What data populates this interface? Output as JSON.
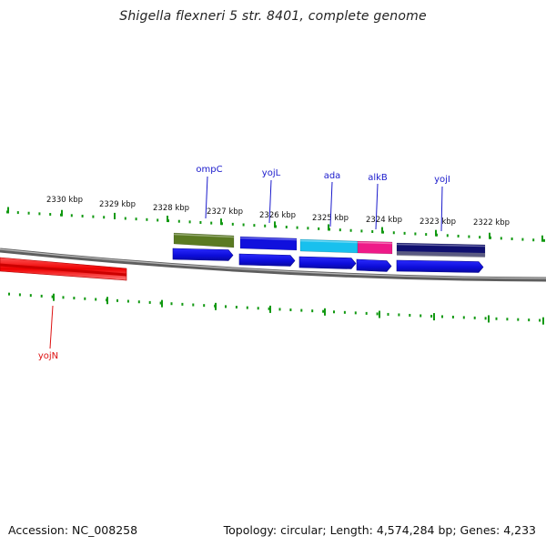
{
  "title": "Shigella flexneri 5 str. 8401, complete genome",
  "footer": {
    "accession": "Accession: NC_008258",
    "summary": "Topology: circular; Length: 4,574,284 bp; Genes: 4,233"
  },
  "scale_labels": [
    "2330 kbp",
    "2329 kbp",
    "2328 kbp",
    "2327 kbp",
    "2326 kbp",
    "2325 kbp",
    "2324 kbp",
    "2323 kbp",
    "2322 kbp"
  ],
  "genes": [
    {
      "name": "ompC",
      "strand": "upper",
      "color": "#5a7a22",
      "label_color": "#1a1acc"
    },
    {
      "name": "yojL",
      "strand": "upper",
      "color": "#1010dd",
      "label_color": "#1a1acc"
    },
    {
      "name": "ada",
      "strand": "upper",
      "color": "#18c0ee",
      "label_color": "#1a1acc"
    },
    {
      "name": "alkB",
      "strand": "upper",
      "color": "#ee1a88",
      "label_color": "#1a1acc"
    },
    {
      "name": "yojI",
      "strand": "upper",
      "color": "#101070",
      "label_color": "#1a1acc"
    },
    {
      "name": "yojN",
      "strand": "lower",
      "color": "#ee0000",
      "label_color": "#dd1111"
    }
  ],
  "colors": {
    "ruler_ticks": "#119911",
    "backbone": "#808080",
    "cds": "#1414e6"
  }
}
